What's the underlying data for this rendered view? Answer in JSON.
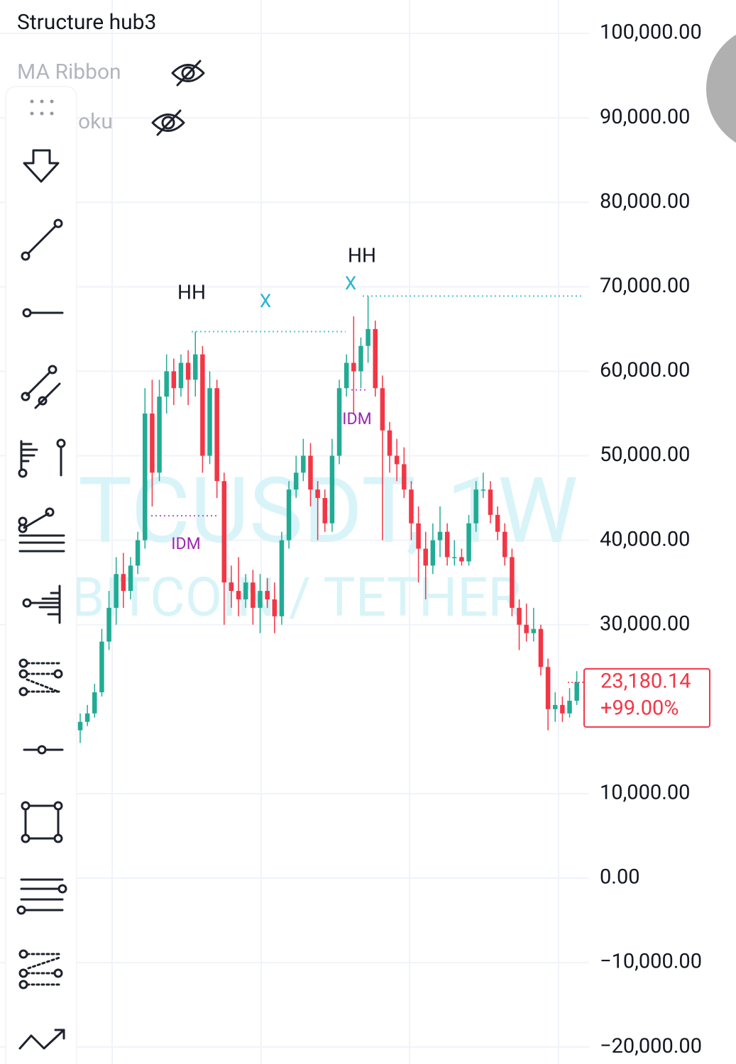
{
  "header": {
    "indicator": "Structure hub3",
    "hidden_indicators": [
      "MA Ribbon",
      "oku"
    ]
  },
  "chart_data": {
    "type": "candlestick",
    "watermark": [
      "TCUSDT, 1W",
      "BITCOIN / TETHER"
    ],
    "up_color": "#22ab94",
    "down_color": "#f23645",
    "ylim": [
      -22000,
      103950
    ],
    "yticks": [
      {
        "value": 100000,
        "label": "100,000.00"
      },
      {
        "value": 90000,
        "label": "90,000.00"
      },
      {
        "value": 80000,
        "label": "80,000.00"
      },
      {
        "value": 70000,
        "label": "70,000.00"
      },
      {
        "value": 60000,
        "label": "60,000.00"
      },
      {
        "value": 50000,
        "label": "50,000.00"
      },
      {
        "value": 40000,
        "label": "40,000.00"
      },
      {
        "value": 30000,
        "label": "30,000.00"
      },
      {
        "value": 10000,
        "label": "10,000.00"
      },
      {
        "value": 0,
        "label": "0.00"
      },
      {
        "value": -10000,
        "label": "−10,000.00"
      },
      {
        "value": -20000,
        "label": "−20,000.00"
      }
    ],
    "grid": true,
    "open": [
      17500,
      18500,
      19500,
      22000,
      28000,
      32000,
      36000,
      34000,
      37000,
      40000,
      55000,
      48000,
      57000,
      60000,
      58000,
      61000,
      59000,
      62000,
      50000,
      58000,
      47000,
      35000,
      34000,
      33000,
      35000,
      32000,
      34000,
      33000,
      31000,
      40000,
      46000,
      48000,
      50000,
      46000,
      45000,
      42000,
      50000,
      58000,
      61000,
      60000,
      63000,
      65000,
      58000,
      53000,
      50000,
      49000,
      46000,
      42000,
      39000,
      37000,
      40000,
      41000,
      38000,
      38000,
      37500,
      42000,
      46000,
      46000,
      43000,
      41000,
      38000,
      32000,
      30000,
      29000,
      29500,
      25000,
      20000,
      20500,
      19500,
      21000
    ],
    "high": [
      19500,
      20500,
      23000,
      29500,
      34000,
      38000,
      38500,
      38000,
      41000,
      58000,
      59000,
      59000,
      62000,
      61500,
      62000,
      62500,
      64700,
      63000,
      60000,
      59000,
      48000,
      37000,
      38000,
      36000,
      36500,
      36000,
      35500,
      35000,
      41000,
      47000,
      50000,
      52000,
      51500,
      47000,
      46000,
      52000,
      59000,
      62000,
      66500,
      64000,
      68900,
      66000,
      59500,
      54000,
      52000,
      51000,
      47000,
      44000,
      41000,
      42000,
      44000,
      42000,
      40000,
      39000,
      43000,
      47000,
      48000,
      47000,
      44000,
      42000,
      39000,
      33000,
      32500,
      32000,
      30000,
      26000,
      22000,
      21500,
      22500,
      24500
    ],
    "low": [
      16000,
      18000,
      19000,
      21500,
      27000,
      30000,
      32000,
      33000,
      36000,
      39000,
      44000,
      47000,
      55000,
      56000,
      57000,
      56000,
      57000,
      48000,
      49000,
      45000,
      30000,
      32000,
      31000,
      32000,
      30000,
      29000,
      32000,
      29000,
      30000,
      39000,
      45000,
      47000,
      44000,
      40000,
      41000,
      41000,
      49000,
      57000,
      55000,
      58000,
      61000,
      57000,
      40000,
      48000,
      47000,
      45000,
      40000,
      35000,
      33000,
      36000,
      38000,
      37000,
      37000,
      37000,
      37000,
      41000,
      45000,
      42000,
      40000,
      37000,
      31000,
      27000,
      28000,
      28000,
      24000,
      17500,
      18500,
      18500,
      19000,
      20500
    ],
    "close": [
      18500,
      19500,
      22000,
      28000,
      32000,
      36000,
      34000,
      37000,
      40000,
      55000,
      48000,
      57000,
      60000,
      58000,
      61000,
      59000,
      62000,
      50000,
      58000,
      47000,
      35000,
      34000,
      33000,
      35000,
      32000,
      34000,
      33000,
      31000,
      40000,
      46000,
      48000,
      50000,
      46000,
      45000,
      42000,
      50000,
      58000,
      61000,
      60000,
      63000,
      65000,
      58000,
      53000,
      50000,
      49000,
      46000,
      42000,
      39000,
      37000,
      40000,
      41000,
      38000,
      38000,
      37500,
      42000,
      46000,
      46000,
      43000,
      41000,
      38000,
      32000,
      30000,
      29000,
      29500,
      25000,
      20000,
      20500,
      19500,
      21000,
      23180.14
    ],
    "levels": [
      {
        "label": "HH",
        "value": 64700
      },
      {
        "label": "HH",
        "value": 68900
      },
      {
        "label": "IDM",
        "value": 42900
      },
      {
        "label": "IDM",
        "value": 57800
      }
    ],
    "markers": [
      "X",
      "X"
    ],
    "last_price": {
      "value": 23180.14,
      "label": "23,180.14",
      "change": 99,
      "change_label": "+99.00%"
    }
  }
}
